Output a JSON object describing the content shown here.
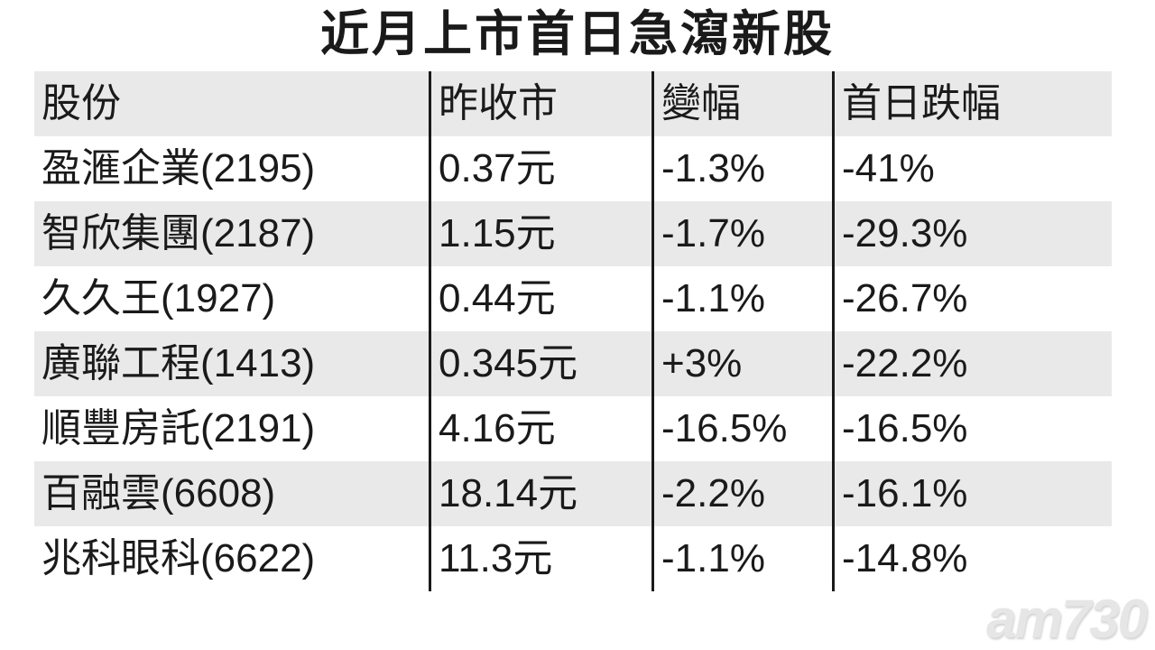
{
  "title": "近月上市首日急瀉新股",
  "watermark_text": "am730",
  "colors": {
    "row_alt": "#e9e9e9",
    "text": "#1a1a1a",
    "divider": "#1a1a1a",
    "watermark": "#e6e6e6"
  },
  "chart_data": {
    "type": "table",
    "title": "近月上市首日急瀉新股",
    "columns": [
      "股份",
      "昨收市",
      "變幅",
      "首日跌幅"
    ],
    "rows": [
      [
        "盈滙企業(2195)",
        "0.37元",
        "-1.3%",
        "-41%"
      ],
      [
        "智欣集團(2187)",
        "1.15元",
        "-1.7%",
        "-29.3%"
      ],
      [
        "久久王(1927)",
        "0.44元",
        "-1.1%",
        "-26.7%"
      ],
      [
        "廣聯工程(1413)",
        "0.345元",
        "+3%",
        "-22.2%"
      ],
      [
        "順豐房託(2191)",
        "4.16元",
        "-16.5%",
        "-16.5%"
      ],
      [
        "百融雲(6608)",
        "18.14元",
        "-2.2%",
        "-16.1%"
      ],
      [
        "兆科眼科(6622)",
        "11.3元",
        "-1.1%",
        "-14.8%"
      ]
    ]
  }
}
